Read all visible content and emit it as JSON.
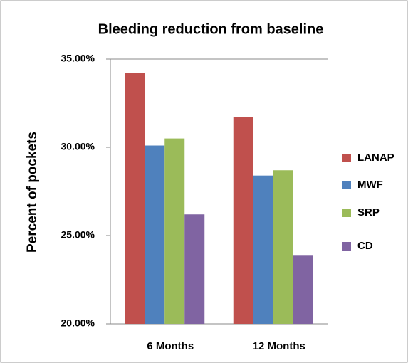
{
  "chart_data": {
    "type": "bar",
    "title": "Bleeding reduction from baseline",
    "y_label": "Percent of pockets",
    "categories": [
      "6 Months",
      "12 Months"
    ],
    "series": [
      {
        "name": "LANAP",
        "color": "#c0504d",
        "values": [
          34.2,
          31.7
        ]
      },
      {
        "name": "MWF",
        "color": "#4f81bd",
        "values": [
          30.1,
          28.4
        ]
      },
      {
        "name": "SRP",
        "color": "#9bbb59",
        "values": [
          30.5,
          28.7
        ]
      },
      {
        "name": "CD",
        "color": "#8064a2",
        "values": [
          26.2,
          23.9
        ]
      }
    ],
    "ylim": [
      20,
      35
    ],
    "yticks": [
      {
        "value": 20,
        "label": "20.00%"
      },
      {
        "value": 25,
        "label": "25.00%"
      },
      {
        "value": 30,
        "label": "30.00%"
      },
      {
        "value": 35,
        "label": "35.00%"
      }
    ],
    "grid": false,
    "legend": "right"
  }
}
